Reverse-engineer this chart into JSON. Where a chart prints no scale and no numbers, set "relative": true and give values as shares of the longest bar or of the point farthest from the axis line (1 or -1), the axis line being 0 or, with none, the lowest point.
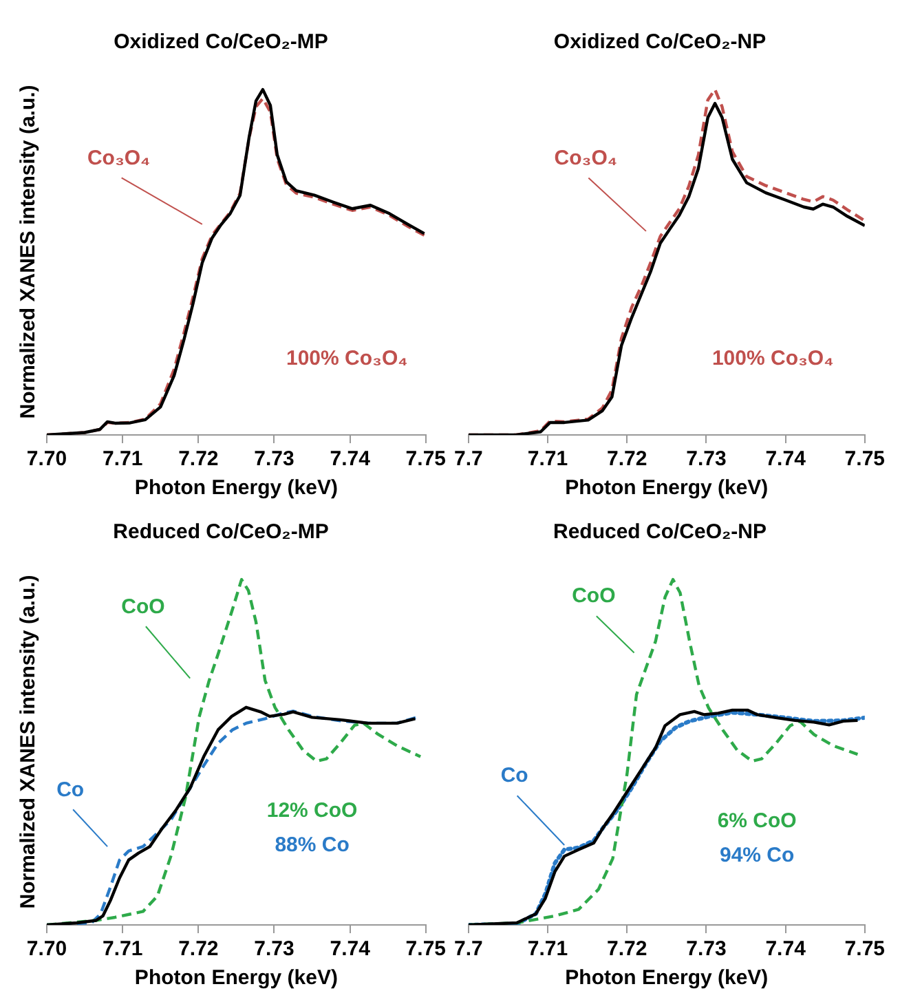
{
  "chart_data": [
    {
      "type": "line",
      "title": "Oxidized Co/CeO₂-MP",
      "xlabel": "Photon Energy (keV)",
      "ylabel": "Normalized XANES intensity (a.u.)",
      "relative": true,
      "xlim": [
        7.7,
        7.75
      ],
      "xticks": [
        {
          "value": 7.7,
          "label": "7.70"
        },
        7.71,
        7.72,
        7.73,
        7.74,
        7.75
      ],
      "legend": false,
      "grid": false,
      "marker": "none",
      "annotations": [
        "100% Co₃O₄"
      ],
      "series": [
        {
          "color": "#000000",
          "line_style": "solid",
          "x": [
            7.7,
            7.705,
            7.707,
            7.708,
            7.709,
            7.711,
            7.713,
            7.715,
            7.7168,
            7.7181,
            7.7193,
            7.7205,
            7.7218,
            7.723,
            7.7242,
            7.7255,
            7.7267,
            7.7276,
            7.7285,
            7.7295,
            7.7304,
            7.7316,
            7.7329,
            7.7353,
            7.7378,
            7.7403,
            7.7427,
            7.7452,
            7.7477,
            7.7498
          ],
          "values": [
            0,
            0.007,
            0.016,
            0.038,
            0.034,
            0.035,
            0.044,
            0.081,
            0.172,
            0.276,
            0.381,
            0.498,
            0.57,
            0.609,
            0.641,
            0.694,
            0.863,
            0.967,
            1,
            0.954,
            0.811,
            0.733,
            0.707,
            0.694,
            0.674,
            0.655,
            0.665,
            0.641,
            0.609,
            0.583
          ]
        },
        {
          "name": "Co₃O₄",
          "color": "#c0504d",
          "line_style": "dashed",
          "x": [
            7.7,
            7.705,
            7.707,
            7.708,
            7.709,
            7.711,
            7.713,
            7.715,
            7.7168,
            7.7181,
            7.7193,
            7.7205,
            7.7218,
            7.723,
            7.7242,
            7.7255,
            7.7267,
            7.7276,
            7.7285,
            7.7295,
            7.7304,
            7.7316,
            7.7329,
            7.7353,
            7.7378,
            7.7403,
            7.7427,
            7.7452,
            7.7477,
            7.7498
          ],
          "values": [
            0,
            0.007,
            0.016,
            0.036,
            0.034,
            0.036,
            0.046,
            0.09,
            0.19,
            0.295,
            0.4,
            0.51,
            0.578,
            0.612,
            0.645,
            0.7,
            0.86,
            0.95,
            0.974,
            0.935,
            0.8,
            0.725,
            0.7,
            0.688,
            0.668,
            0.65,
            0.66,
            0.636,
            0.603,
            0.578
          ]
        }
      ]
    },
    {
      "type": "line",
      "title": "Oxidized Co/CeO₂-NP",
      "xlabel": "Photon Energy (keV)",
      "relative": true,
      "xlim": [
        7.7,
        7.75
      ],
      "xticks": [
        7.7,
        7.71,
        7.72,
        7.73,
        7.74,
        7.75
      ],
      "legend": false,
      "grid": false,
      "marker": "none",
      "annotations": [
        "100% Co₃O₄"
      ],
      "series": [
        {
          "color": "#000000",
          "line_style": "solid",
          "x": [
            7.7,
            7.706,
            7.7091,
            7.7103,
            7.7121,
            7.7151,
            7.7169,
            7.7181,
            7.7193,
            7.7206,
            7.7218,
            7.723,
            7.7242,
            7.7254,
            7.7266,
            7.7278,
            7.729,
            7.7302,
            7.7311,
            7.732,
            7.7333,
            7.7351,
            7.7375,
            7.7399,
            7.7423,
            7.7435,
            7.7447,
            7.746,
            7.7478,
            7.75
          ],
          "values": [
            0,
            0,
            0.009,
            0.036,
            0.036,
            0.043,
            0.07,
            0.11,
            0.259,
            0.34,
            0.407,
            0.474,
            0.555,
            0.596,
            0.636,
            0.69,
            0.771,
            0.919,
            0.96,
            0.919,
            0.798,
            0.73,
            0.701,
            0.681,
            0.66,
            0.654,
            0.668,
            0.66,
            0.633,
            0.606
          ]
        },
        {
          "name": "Co₃O₄",
          "color": "#c0504d",
          "line_style": "dashed",
          "x": [
            7.7,
            7.706,
            7.7091,
            7.7103,
            7.7121,
            7.7151,
            7.7169,
            7.7181,
            7.7193,
            7.7206,
            7.7218,
            7.723,
            7.7242,
            7.7254,
            7.7266,
            7.7278,
            7.729,
            7.7302,
            7.7311,
            7.732,
            7.7333,
            7.7351,
            7.7375,
            7.7399,
            7.7423,
            7.7435,
            7.7447,
            7.746,
            7.7478,
            7.75
          ],
          "values": [
            0,
            0,
            0.012,
            0.04,
            0.038,
            0.046,
            0.078,
            0.13,
            0.28,
            0.37,
            0.43,
            0.5,
            0.575,
            0.615,
            0.655,
            0.72,
            0.81,
            0.97,
            1,
            0.95,
            0.82,
            0.748,
            0.722,
            0.702,
            0.682,
            0.675,
            0.69,
            0.68,
            0.652,
            0.62
          ]
        }
      ]
    },
    {
      "type": "line",
      "title": "Reduced Co/CeO₂-MP",
      "xlabel": "Photon Energy (keV)",
      "ylabel": "Normalized XANES intensity (a.u.)",
      "relative": true,
      "xlim": [
        7.7,
        7.75
      ],
      "xticks": [
        {
          "value": 7.7,
          "label": "7.70"
        },
        7.71,
        7.72,
        7.73,
        7.74,
        7.75
      ],
      "legend": false,
      "grid": false,
      "marker": "none",
      "annotations": [
        "12% CoO",
        "88% Co"
      ],
      "series": [
        {
          "color": "#000000",
          "line_style": "solid",
          "x": [
            7.7,
            7.704,
            7.7065,
            7.7074,
            7.7084,
            7.7096,
            7.7108,
            7.7121,
            7.7136,
            7.7152,
            7.717,
            7.7189,
            7.7207,
            7.7226,
            7.7244,
            7.7263,
            7.7282,
            7.7294,
            7.7313,
            7.7325,
            7.735,
            7.7387,
            7.7424,
            7.7462,
            7.7486
          ],
          "values": [
            0,
            0.006,
            0.013,
            0.026,
            0.071,
            0.136,
            0.188,
            0.208,
            0.227,
            0.279,
            0.331,
            0.396,
            0.487,
            0.565,
            0.604,
            0.63,
            0.617,
            0.604,
            0.61,
            0.617,
            0.601,
            0.594,
            0.584,
            0.584,
            0.597
          ]
        },
        {
          "name": "CoO",
          "color": "#2eaa4a",
          "line_style": "dashed",
          "x": [
            7.7,
            7.7065,
            7.709,
            7.7127,
            7.7146,
            7.7164,
            7.7183,
            7.7201,
            7.7214,
            7.7226,
            7.7245,
            7.7257,
            7.7266,
            7.7276,
            7.7288,
            7.7301,
            7.7319,
            7.7338,
            7.7356,
            7.7369,
            7.7387,
            7.7406,
            7.7418,
            7.7437,
            7.7462,
            7.7493
          ],
          "values": [
            0,
            0.013,
            0.022,
            0.039,
            0.084,
            0.201,
            0.369,
            0.602,
            0.706,
            0.784,
            0.914,
            1,
            0.968,
            0.877,
            0.708,
            0.63,
            0.565,
            0.506,
            0.474,
            0.481,
            0.526,
            0.578,
            0.584,
            0.552,
            0.519,
            0.487
          ]
        },
        {
          "name": "Co",
          "color": "#2a7bc8",
          "line_style": "dashed",
          "x": [
            7.7,
            7.7059,
            7.7071,
            7.7084,
            7.7096,
            7.7108,
            7.7127,
            7.7146,
            7.7164,
            7.7189,
            7.7207,
            7.7226,
            7.7245,
            7.7263,
            7.7288,
            7.7313,
            7.7325,
            7.735,
            7.7387,
            7.7424,
            7.7462,
            7.7493
          ],
          "values": [
            0,
            0.006,
            0.032,
            0.11,
            0.188,
            0.214,
            0.227,
            0.266,
            0.305,
            0.396,
            0.461,
            0.526,
            0.565,
            0.584,
            0.597,
            0.614,
            0.619,
            0.604,
            0.591,
            0.584,
            0.584,
            0.604
          ]
        }
      ]
    },
    {
      "type": "line",
      "title": "Reduced Co/CeO₂-NP",
      "xlabel": "Photon Energy (keV)",
      "relative": true,
      "xlim": [
        7.7,
        7.75
      ],
      "xticks": [
        7.7,
        7.71,
        7.72,
        7.73,
        7.74,
        7.75
      ],
      "legend": false,
      "grid": false,
      "marker": "none",
      "annotations": [
        "6% CoO",
        "94% Co"
      ],
      "series": [
        {
          "color": "#000000",
          "line_style": "solid",
          "x": [
            7.7,
            7.7061,
            7.7085,
            7.7097,
            7.7109,
            7.7121,
            7.7139,
            7.7158,
            7.717,
            7.7182,
            7.72,
            7.7218,
            7.7236,
            7.7248,
            7.7267,
            7.7285,
            7.7297,
            7.7315,
            7.7333,
            7.7352,
            7.7364,
            7.7388,
            7.7412,
            7.7436,
            7.7455,
            7.7473,
            7.7491
          ],
          "values": [
            0,
            0.006,
            0.032,
            0.077,
            0.154,
            0.199,
            0.218,
            0.237,
            0.282,
            0.321,
            0.385,
            0.449,
            0.513,
            0.577,
            0.609,
            0.618,
            0.609,
            0.613,
            0.622,
            0.622,
            0.609,
            0.6,
            0.592,
            0.587,
            0.579,
            0.59,
            0.592
          ]
        },
        {
          "name": "CoO",
          "color": "#2eaa4a",
          "line_style": "dashed",
          "x": [
            7.7,
            7.7061,
            7.7109,
            7.7139,
            7.7164,
            7.7182,
            7.72,
            7.7212,
            7.7224,
            7.7236,
            7.7248,
            7.7258,
            7.7267,
            7.7279,
            7.7291,
            7.7303,
            7.7321,
            7.7339,
            7.7358,
            7.737,
            7.7388,
            7.7406,
            7.7418,
            7.7436,
            7.746,
            7.7491
          ],
          "values": [
            0,
            0.006,
            0.026,
            0.045,
            0.103,
            0.192,
            0.436,
            0.667,
            0.744,
            0.821,
            0.949,
            1,
            0.962,
            0.821,
            0.692,
            0.628,
            0.564,
            0.506,
            0.474,
            0.481,
            0.526,
            0.577,
            0.59,
            0.551,
            0.519,
            0.494
          ]
        },
        {
          "name": "Co",
          "color": "#2a7bc8",
          "line_style": "dotted",
          "x": [
            7.7,
            7.7061,
            7.7085,
            7.7097,
            7.7109,
            7.7121,
            7.7139,
            7.7158,
            7.717,
            7.7188,
            7.7206,
            7.7224,
            7.7242,
            7.7261,
            7.7279,
            7.7303,
            7.7333,
            7.7364,
            7.74,
            7.7436,
            7.7473,
            7.75
          ],
          "values": [
            0,
            0.003,
            0.032,
            0.09,
            0.179,
            0.218,
            0.224,
            0.244,
            0.282,
            0.333,
            0.397,
            0.468,
            0.532,
            0.571,
            0.59,
            0.603,
            0.615,
            0.609,
            0.6,
            0.59,
            0.592,
            0.6
          ]
        }
      ]
    }
  ]
}
